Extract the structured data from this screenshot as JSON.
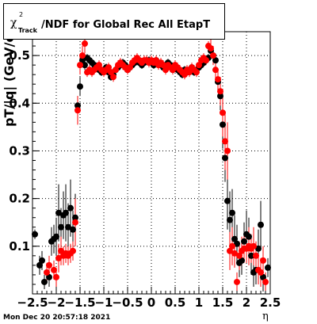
{
  "title": {
    "chi": "χ",
    "sup": "2",
    "sub": "Track",
    "rest": "/NDF for Global Rec All EtapT"
  },
  "timestamp": "Mon Dec 20 20:57:18 2021",
  "colors": {
    "series_black": "#000000",
    "series_red": "#ff0000",
    "grid": "#000000"
  },
  "chart_data": {
    "type": "scatter",
    "title": "χ²Track/NDF for Global Rec All EtapT",
    "xlabel": "η",
    "ylabel": "pT/|q| (GeV/c)",
    "xlim": [
      -2.5,
      2.5
    ],
    "ylim": [
      0.0,
      0.55
    ],
    "grid": true,
    "x_ticks": [
      -2.5,
      -2,
      -1.5,
      -1,
      -0.5,
      0,
      0.5,
      1,
      1.5,
      2,
      2.5
    ],
    "x_tick_labels": [
      "−2.5",
      "−2",
      "−1.5",
      "−1",
      "−0.5",
      "0",
      "0.5",
      "1",
      "1.5",
      "2",
      "2.5"
    ],
    "y_ticks": [
      0.1,
      0.2,
      0.3,
      0.4,
      0.5
    ],
    "y_tick_labels": [
      "0.1",
      "0.2",
      "0.3",
      "0.4",
      "0.5"
    ],
    "series": [
      {
        "color": "#000000",
        "points": [
          [
            -2.45,
            0.125,
            0.01
          ],
          [
            -2.35,
            0.06,
            0.02
          ],
          [
            -2.3,
            0.07,
            0.02
          ],
          [
            -2.25,
            0.025,
            0.015
          ],
          [
            -2.15,
            0.035,
            0.02
          ],
          [
            -2.1,
            0.11,
            0.03
          ],
          [
            -2.05,
            0.115,
            0.03
          ],
          [
            -2.0,
            0.12,
            0.04
          ],
          [
            -1.95,
            0.17,
            0.06
          ],
          [
            -1.9,
            0.14,
            0.04
          ],
          [
            -1.85,
            0.165,
            0.05
          ],
          [
            -1.8,
            0.17,
            0.06
          ],
          [
            -1.75,
            0.14,
            0.05
          ],
          [
            -1.7,
            0.18,
            0.06
          ],
          [
            -1.65,
            0.135,
            0.04
          ],
          [
            -1.6,
            0.16,
            0.05
          ],
          [
            -1.55,
            0.395,
            0.02
          ],
          [
            -1.5,
            0.435,
            0.02
          ],
          [
            -1.45,
            0.49,
            0.01
          ],
          [
            -1.4,
            0.48,
            0.01
          ],
          [
            -1.35,
            0.495,
            0.008
          ],
          [
            -1.3,
            0.49,
            0.008
          ],
          [
            -1.25,
            0.485,
            0.008
          ],
          [
            -1.2,
            0.48,
            0.008
          ],
          [
            -1.15,
            0.475,
            0.008
          ],
          [
            -1.1,
            0.47,
            0.008
          ],
          [
            -1.05,
            0.465,
            0.008
          ],
          [
            -1.0,
            0.47,
            0.008
          ],
          [
            -0.95,
            0.475,
            0.008
          ],
          [
            -0.9,
            0.465,
            0.008
          ],
          [
            -0.85,
            0.455,
            0.008
          ],
          [
            -0.8,
            0.46,
            0.008
          ],
          [
            -0.75,
            0.47,
            0.008
          ],
          [
            -0.7,
            0.475,
            0.008
          ],
          [
            -0.65,
            0.48,
            0.008
          ],
          [
            -0.6,
            0.485,
            0.008
          ],
          [
            -0.55,
            0.48,
            0.008
          ],
          [
            -0.5,
            0.47,
            0.008
          ],
          [
            -0.45,
            0.475,
            0.008
          ],
          [
            -0.4,
            0.48,
            0.008
          ],
          [
            -0.35,
            0.485,
            0.008
          ],
          [
            -0.3,
            0.49,
            0.008
          ],
          [
            -0.25,
            0.485,
            0.008
          ],
          [
            -0.2,
            0.48,
            0.008
          ],
          [
            -0.15,
            0.485,
            0.008
          ],
          [
            -0.1,
            0.49,
            0.008
          ],
          [
            -0.05,
            0.49,
            0.008
          ],
          [
            0.0,
            0.485,
            0.008
          ],
          [
            0.05,
            0.48,
            0.008
          ],
          [
            0.1,
            0.49,
            0.008
          ],
          [
            0.15,
            0.485,
            0.008
          ],
          [
            0.2,
            0.48,
            0.008
          ],
          [
            0.25,
            0.475,
            0.008
          ],
          [
            0.3,
            0.48,
            0.008
          ],
          [
            0.35,
            0.485,
            0.008
          ],
          [
            0.4,
            0.48,
            0.008
          ],
          [
            0.45,
            0.47,
            0.008
          ],
          [
            0.5,
            0.475,
            0.008
          ],
          [
            0.55,
            0.47,
            0.008
          ],
          [
            0.6,
            0.465,
            0.008
          ],
          [
            0.65,
            0.46,
            0.008
          ],
          [
            0.7,
            0.47,
            0.008
          ],
          [
            0.75,
            0.465,
            0.008
          ],
          [
            0.8,
            0.47,
            0.008
          ],
          [
            0.85,
            0.475,
            0.008
          ],
          [
            0.9,
            0.465,
            0.008
          ],
          [
            0.95,
            0.47,
            0.008
          ],
          [
            1.0,
            0.475,
            0.008
          ],
          [
            1.05,
            0.48,
            0.008
          ],
          [
            1.1,
            0.485,
            0.008
          ],
          [
            1.15,
            0.49,
            0.008
          ],
          [
            1.2,
            0.495,
            0.008
          ],
          [
            1.25,
            0.51,
            0.01
          ],
          [
            1.3,
            0.5,
            0.01
          ],
          [
            1.35,
            0.49,
            0.01
          ],
          [
            1.4,
            0.445,
            0.02
          ],
          [
            1.45,
            0.415,
            0.03
          ],
          [
            1.5,
            0.355,
            0.05
          ],
          [
            1.55,
            0.285,
            0.05
          ],
          [
            1.6,
            0.195,
            0.06
          ],
          [
            1.65,
            0.155,
            0.06
          ],
          [
            1.7,
            0.17,
            0.05
          ],
          [
            1.75,
            0.115,
            0.05
          ],
          [
            1.8,
            0.105,
            0.04
          ],
          [
            1.85,
            0.065,
            0.03
          ],
          [
            1.9,
            0.07,
            0.03
          ],
          [
            1.95,
            0.11,
            0.04
          ],
          [
            2.0,
            0.125,
            0.05
          ],
          [
            2.05,
            0.12,
            0.04
          ],
          [
            2.1,
            0.08,
            0.04
          ],
          [
            2.15,
            0.045,
            0.03
          ],
          [
            2.2,
            0.05,
            0.03
          ],
          [
            2.25,
            0.095,
            0.04
          ],
          [
            2.3,
            0.145,
            0.05
          ],
          [
            2.35,
            0.035,
            0.03
          ],
          [
            2.45,
            0.055,
            0.02
          ]
        ]
      },
      {
        "color": "#ff0000",
        "points": [
          [
            -2.2,
            0.045,
            0.02
          ],
          [
            -2.15,
            0.06,
            0.02
          ],
          [
            -2.05,
            0.05,
            0.02
          ],
          [
            -2.0,
            0.035,
            0.02
          ],
          [
            -1.95,
            0.075,
            0.03
          ],
          [
            -1.9,
            0.09,
            0.03
          ],
          [
            -1.85,
            0.08,
            0.02
          ],
          [
            -1.8,
            0.085,
            0.02
          ],
          [
            -1.75,
            0.08,
            0.02
          ],
          [
            -1.7,
            0.085,
            0.02
          ],
          [
            -1.65,
            0.09,
            0.02
          ],
          [
            -1.6,
            0.15,
            0.05
          ],
          [
            -1.55,
            0.385,
            0.03
          ],
          [
            -1.5,
            0.48,
            0.02
          ],
          [
            -1.45,
            0.5,
            0.02
          ],
          [
            -1.4,
            0.525,
            0.02
          ],
          [
            -1.35,
            0.465,
            0.01
          ],
          [
            -1.3,
            0.47,
            0.01
          ],
          [
            -1.25,
            0.465,
            0.01
          ],
          [
            -1.2,
            0.47,
            0.01
          ],
          [
            -1.15,
            0.475,
            0.01
          ],
          [
            -1.1,
            0.48,
            0.01
          ],
          [
            -1.05,
            0.47,
            0.01
          ],
          [
            -1.0,
            0.465,
            0.01
          ],
          [
            -0.95,
            0.47,
            0.01
          ],
          [
            -0.9,
            0.475,
            0.01
          ],
          [
            -0.85,
            0.465,
            0.01
          ],
          [
            -0.8,
            0.455,
            0.01
          ],
          [
            -0.75,
            0.47,
            0.01
          ],
          [
            -0.7,
            0.48,
            0.01
          ],
          [
            -0.65,
            0.485,
            0.01
          ],
          [
            -0.6,
            0.48,
            0.01
          ],
          [
            -0.55,
            0.475,
            0.01
          ],
          [
            -0.5,
            0.47,
            0.01
          ],
          [
            -0.45,
            0.475,
            0.01
          ],
          [
            -0.4,
            0.485,
            0.01
          ],
          [
            -0.35,
            0.49,
            0.01
          ],
          [
            -0.3,
            0.495,
            0.01
          ],
          [
            -0.25,
            0.49,
            0.01
          ],
          [
            -0.2,
            0.485,
            0.01
          ],
          [
            -0.15,
            0.49,
            0.01
          ],
          [
            -0.1,
            0.49,
            0.01
          ],
          [
            -0.05,
            0.485,
            0.01
          ],
          [
            0.0,
            0.49,
            0.01
          ],
          [
            0.05,
            0.485,
            0.01
          ],
          [
            0.1,
            0.49,
            0.01
          ],
          [
            0.15,
            0.48,
            0.01
          ],
          [
            0.2,
            0.485,
            0.01
          ],
          [
            0.25,
            0.48,
            0.01
          ],
          [
            0.3,
            0.47,
            0.01
          ],
          [
            0.35,
            0.48,
            0.01
          ],
          [
            0.4,
            0.475,
            0.01
          ],
          [
            0.45,
            0.47,
            0.01
          ],
          [
            0.5,
            0.48,
            0.01
          ],
          [
            0.55,
            0.475,
            0.01
          ],
          [
            0.6,
            0.47,
            0.01
          ],
          [
            0.65,
            0.465,
            0.01
          ],
          [
            0.7,
            0.46,
            0.01
          ],
          [
            0.75,
            0.47,
            0.01
          ],
          [
            0.8,
            0.465,
            0.01
          ],
          [
            0.85,
            0.475,
            0.01
          ],
          [
            0.9,
            0.47,
            0.01
          ],
          [
            0.95,
            0.465,
            0.01
          ],
          [
            1.0,
            0.48,
            0.01
          ],
          [
            1.05,
            0.49,
            0.01
          ],
          [
            1.1,
            0.495,
            0.01
          ],
          [
            1.15,
            0.49,
            0.01
          ],
          [
            1.2,
            0.52,
            0.01
          ],
          [
            1.25,
            0.515,
            0.02
          ],
          [
            1.3,
            0.5,
            0.02
          ],
          [
            1.35,
            0.47,
            0.02
          ],
          [
            1.4,
            0.45,
            0.02
          ],
          [
            1.45,
            0.425,
            0.03
          ],
          [
            1.5,
            0.38,
            0.05
          ],
          [
            1.55,
            0.32,
            0.06
          ],
          [
            1.6,
            0.3,
            0.06
          ],
          [
            1.65,
            0.09,
            0.04
          ],
          [
            1.7,
            0.1,
            0.04
          ],
          [
            1.75,
            0.085,
            0.03
          ],
          [
            1.8,
            0.025,
            0.02
          ],
          [
            1.85,
            0.08,
            0.03
          ],
          [
            1.9,
            0.09,
            0.03
          ],
          [
            1.95,
            0.095,
            0.03
          ],
          [
            2.0,
            0.095,
            0.03
          ],
          [
            2.05,
            0.1,
            0.04
          ],
          [
            2.1,
            0.095,
            0.03
          ],
          [
            2.15,
            0.1,
            0.04
          ],
          [
            2.2,
            0.08,
            0.03
          ],
          [
            2.25,
            0.05,
            0.03
          ],
          [
            2.3,
            0.045,
            0.03
          ],
          [
            2.35,
            0.07,
            0.03
          ],
          [
            2.4,
            0.025,
            0.02
          ]
        ]
      }
    ]
  }
}
